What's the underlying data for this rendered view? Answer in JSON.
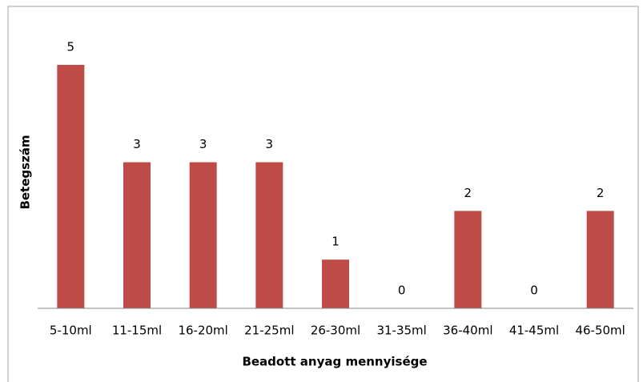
{
  "chart_data": {
    "type": "bar",
    "x_label": "Beadott anyag mennyisége",
    "y_label": "Betegszám",
    "categories": [
      "5-10ml",
      "11-15ml",
      "16-20ml",
      "21-25ml",
      "26-30ml",
      "31-35ml",
      "36-40ml",
      "41-45ml",
      "46-50ml"
    ],
    "values": [
      5,
      3,
      3,
      3,
      1,
      0,
      2,
      0,
      2
    ],
    "color": "#be4b48"
  }
}
